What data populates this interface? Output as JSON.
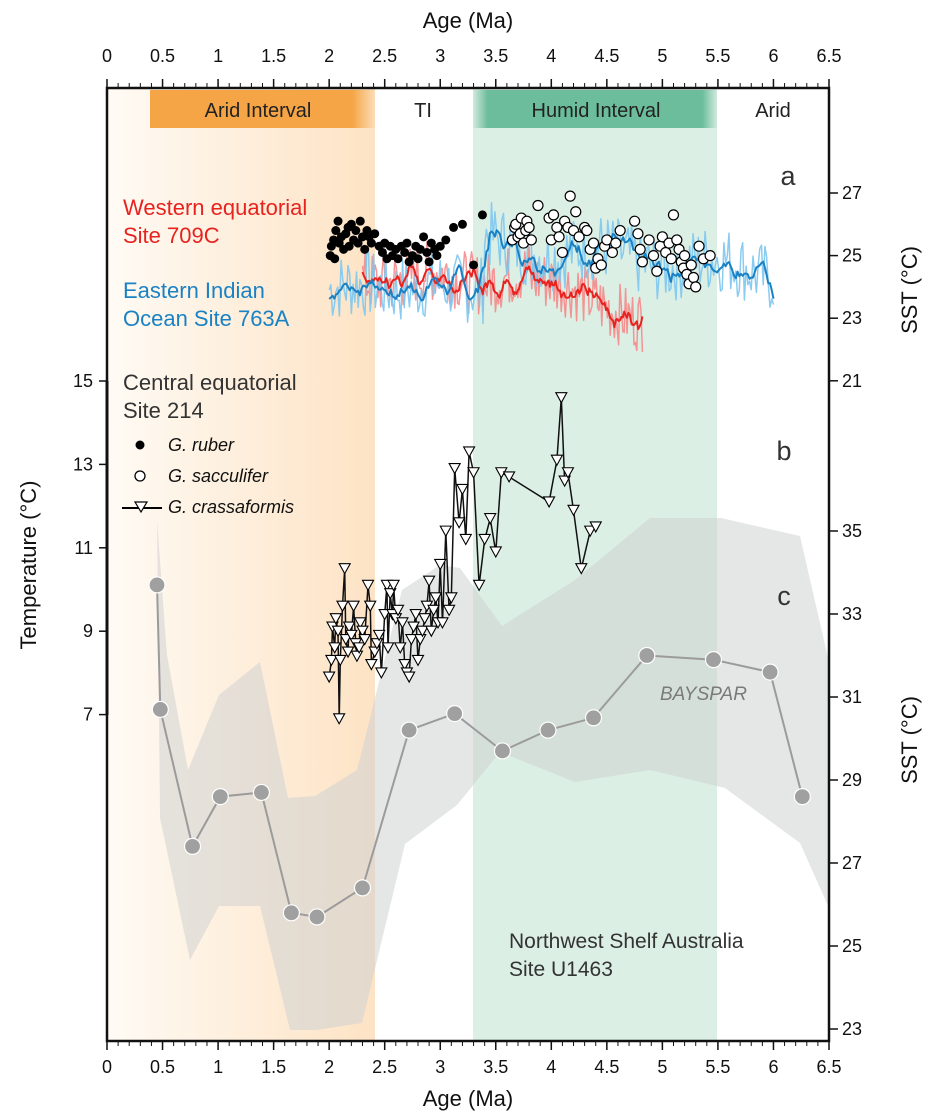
{
  "chart_data": {
    "type": "scatter",
    "xlabel_top": "Age (Ma)",
    "xlabel_bottom": "Age (Ma)",
    "xlim": [
      0,
      6.5
    ],
    "x_ticks": [
      "0",
      "0.5",
      "1",
      "1.5",
      "2",
      "2.5",
      "3",
      "3.5",
      "4",
      "4.5",
      "5",
      "5.5",
      "6",
      "6.5"
    ],
    "intervals": [
      {
        "label": "Arid Interval",
        "start": 0.4,
        "end": 2.4,
        "color": "#f5a545"
      },
      {
        "label": "TI",
        "start": 2.4,
        "end": 3.3,
        "color": "#ffffff"
      },
      {
        "label": "Humid Interval",
        "start": 3.3,
        "end": 5.5,
        "color": "#6cbd9c"
      },
      {
        "label": "Arid",
        "start": 5.5,
        "end": 6.5,
        "color": "#ffffff"
      }
    ],
    "panel_labels": [
      "a",
      "b",
      "c"
    ],
    "left_axis": {
      "label": "Temperature (°C)",
      "ticks": [
        7,
        9,
        11,
        13,
        15
      ]
    },
    "right_axis_top": {
      "label": "SST (°C)",
      "ticks": [
        21,
        23,
        25,
        27
      ]
    },
    "right_axis_bottom": {
      "label": "SST (°C)",
      "ticks": [
        23,
        25,
        27,
        29,
        31,
        33,
        35
      ]
    },
    "series_labels": {
      "site709": [
        "Western equatorial",
        "Site 709C"
      ],
      "site763": [
        "Eastern Indian",
        "Ocean Site 763A"
      ],
      "site214": [
        "Central equatorial",
        "Site 214"
      ],
      "u1463": [
        "Northwest Shelf Australia",
        "Site U1463"
      ],
      "bayspar": "BAYSPAR"
    },
    "legend": {
      "ruber": "G. ruber",
      "sacculifer": "G. sacculifer",
      "crassaformis": "G. crassaformis"
    },
    "series": [
      {
        "name": "G. ruber",
        "axis": "right_top",
        "marker": "filled-circle",
        "points": [
          [
            2.01,
            25.0
          ],
          [
            2.02,
            25.3
          ],
          [
            2.04,
            25.5
          ],
          [
            2.05,
            24.9
          ],
          [
            2.06,
            25.8
          ],
          [
            2.08,
            26.1
          ],
          [
            2.09,
            25.4
          ],
          [
            2.11,
            25.6
          ],
          [
            2.13,
            25.2
          ],
          [
            2.15,
            25.7
          ],
          [
            2.17,
            25.9
          ],
          [
            2.18,
            25.3
          ],
          [
            2.2,
            26.0
          ],
          [
            2.22,
            25.5
          ],
          [
            2.24,
            25.8
          ],
          [
            2.26,
            25.4
          ],
          [
            2.28,
            26.1
          ],
          [
            2.3,
            25.6
          ],
          [
            2.32,
            25.2
          ],
          [
            2.34,
            25.8
          ],
          [
            2.36,
            25.6
          ],
          [
            2.38,
            25.4
          ],
          [
            2.41,
            25.7
          ],
          [
            2.45,
            25.3
          ],
          [
            2.48,
            25.1
          ],
          [
            2.5,
            25.4
          ],
          [
            2.52,
            24.9
          ],
          [
            2.55,
            25.3
          ],
          [
            2.57,
            25.0
          ],
          [
            2.6,
            25.2
          ],
          [
            2.62,
            24.9
          ],
          [
            2.65,
            25.3
          ],
          [
            2.68,
            25.1
          ],
          [
            2.7,
            25.4
          ],
          [
            2.72,
            24.8
          ],
          [
            2.75,
            25.0
          ],
          [
            2.78,
            25.3
          ],
          [
            2.8,
            24.9
          ],
          [
            2.82,
            25.2
          ],
          [
            2.85,
            25.6
          ],
          [
            2.88,
            25.1
          ],
          [
            2.9,
            24.8
          ],
          [
            2.92,
            25.4
          ],
          [
            2.95,
            25.2
          ],
          [
            2.97,
            25.0
          ],
          [
            3.0,
            25.3
          ],
          [
            3.05,
            25.5
          ],
          [
            3.12,
            25.9
          ],
          [
            3.2,
            26.0
          ],
          [
            3.3,
            24.7
          ],
          [
            3.38,
            26.3
          ]
        ]
      },
      {
        "name": "G. sacculifer",
        "axis": "right_top",
        "marker": "open-circle",
        "points": [
          [
            3.65,
            25.5
          ],
          [
            3.67,
            25.9
          ],
          [
            3.68,
            26.0
          ],
          [
            3.7,
            25.6
          ],
          [
            3.72,
            25.7
          ],
          [
            3.73,
            26.2
          ],
          [
            3.75,
            25.4
          ],
          [
            3.77,
            25.8
          ],
          [
            3.78,
            26.1
          ],
          [
            3.8,
            25.9
          ],
          [
            3.82,
            25.5
          ],
          [
            3.88,
            26.6
          ],
          [
            3.98,
            26.2
          ],
          [
            4.0,
            25.5
          ],
          [
            4.02,
            26.3
          ],
          [
            4.05,
            25.9
          ],
          [
            4.07,
            25.6
          ],
          [
            4.1,
            25.1
          ],
          [
            4.12,
            26.1
          ],
          [
            4.15,
            25.9
          ],
          [
            4.17,
            26.9
          ],
          [
            4.2,
            25.8
          ],
          [
            4.22,
            26.4
          ],
          [
            4.25,
            25.6
          ],
          [
            4.3,
            25.9
          ],
          [
            4.32,
            25.8
          ],
          [
            4.35,
            25.2
          ],
          [
            4.38,
            25.4
          ],
          [
            4.4,
            24.6
          ],
          [
            4.42,
            24.9
          ],
          [
            4.45,
            24.7
          ],
          [
            4.48,
            25.3
          ],
          [
            4.5,
            25.5
          ],
          [
            4.55,
            25.1
          ],
          [
            4.58,
            25.4
          ],
          [
            4.62,
            25.8
          ],
          [
            4.75,
            26.1
          ],
          [
            4.78,
            25.7
          ],
          [
            4.8,
            25.2
          ],
          [
            4.82,
            24.8
          ],
          [
            4.88,
            25.5
          ],
          [
            4.92,
            25.0
          ],
          [
            4.95,
            24.5
          ],
          [
            4.98,
            25.3
          ],
          [
            5.0,
            25.6
          ],
          [
            5.03,
            25.1
          ],
          [
            5.06,
            25.4
          ],
          [
            5.08,
            24.9
          ],
          [
            5.1,
            26.3
          ],
          [
            5.13,
            25.5
          ],
          [
            5.15,
            25.2
          ],
          [
            5.17,
            24.8
          ],
          [
            5.19,
            24.6
          ],
          [
            5.2,
            25.0
          ],
          [
            5.22,
            24.4
          ],
          [
            5.24,
            24.1
          ],
          [
            5.26,
            24.7
          ],
          [
            5.28,
            24.3
          ],
          [
            5.3,
            24.0
          ],
          [
            5.33,
            25.3
          ],
          [
            5.37,
            24.9
          ],
          [
            5.43,
            25.0
          ]
        ]
      },
      {
        "name": "G. crassaformis",
        "axis": "left",
        "marker": "open-triangle",
        "points": [
          [
            2.0,
            7.9
          ],
          [
            2.02,
            8.3
          ],
          [
            2.03,
            9.1
          ],
          [
            2.05,
            8.6
          ],
          [
            2.06,
            9.3
          ],
          [
            2.08,
            9.0
          ],
          [
            2.09,
            6.9
          ],
          [
            2.1,
            8.3
          ],
          [
            2.12,
            9.6
          ],
          [
            2.14,
            10.5
          ],
          [
            2.15,
            8.8
          ],
          [
            2.17,
            8.5
          ],
          [
            2.18,
            9.1
          ],
          [
            2.2,
            8.9
          ],
          [
            2.22,
            9.6
          ],
          [
            2.24,
            8.7
          ],
          [
            2.25,
            8.4
          ],
          [
            2.27,
            8.6
          ],
          [
            2.28,
            9.2
          ],
          [
            2.3,
            9.0
          ],
          [
            2.32,
            8.8
          ],
          [
            2.35,
            10.1
          ],
          [
            2.37,
            9.6
          ],
          [
            2.38,
            8.2
          ],
          [
            2.41,
            8.5
          ],
          [
            2.43,
            8.7
          ],
          [
            2.45,
            8.9
          ],
          [
            2.47,
            8.0
          ],
          [
            2.5,
            9.4
          ],
          [
            2.52,
            10.1
          ],
          [
            2.53,
            8.6
          ],
          [
            2.55,
            9.9
          ],
          [
            2.57,
            9.4
          ],
          [
            2.58,
            10.1
          ],
          [
            2.6,
            9.3
          ],
          [
            2.62,
            9.5
          ],
          [
            2.64,
            8.6
          ],
          [
            2.66,
            9.2
          ],
          [
            2.68,
            8.2
          ],
          [
            2.7,
            8.0
          ],
          [
            2.72,
            7.9
          ],
          [
            2.74,
            8.8
          ],
          [
            2.76,
            9.1
          ],
          [
            2.78,
            9.4
          ],
          [
            2.8,
            8.3
          ],
          [
            2.82,
            8.8
          ],
          [
            2.84,
            9.0
          ],
          [
            2.86,
            9.3
          ],
          [
            2.88,
            9.6
          ],
          [
            2.9,
            10.2
          ],
          [
            2.92,
            9.0
          ],
          [
            2.94,
            9.5
          ],
          [
            2.96,
            9.8
          ],
          [
            2.98,
            9.2
          ],
          [
            3.0,
            10.6
          ],
          [
            3.02,
            9.2
          ],
          [
            3.05,
            11.4
          ],
          [
            3.08,
            9.5
          ],
          [
            3.1,
            9.8
          ],
          [
            3.13,
            12.9
          ],
          [
            3.17,
            11.6
          ],
          [
            3.2,
            12.4
          ],
          [
            3.23,
            11.2
          ],
          [
            3.26,
            13.3
          ],
          [
            3.3,
            12.8
          ],
          [
            3.35,
            10.1
          ],
          [
            3.4,
            11.2
          ],
          [
            3.45,
            11.7
          ],
          [
            3.5,
            10.9
          ],
          [
            3.55,
            12.8
          ],
          [
            3.62,
            12.7
          ],
          [
            3.98,
            12.1
          ],
          [
            4.05,
            13.1
          ],
          [
            4.09,
            14.6
          ],
          [
            4.12,
            12.6
          ],
          [
            4.15,
            12.8
          ],
          [
            4.2,
            11.9
          ],
          [
            4.27,
            10.5
          ],
          [
            4.35,
            11.4
          ],
          [
            4.4,
            11.5
          ]
        ]
      },
      {
        "name": "BAYSPAR",
        "axis": "right_bottom",
        "marker": "gray-circle-line",
        "points": [
          [
            0.45,
            33.7
          ],
          [
            0.48,
            30.7
          ],
          [
            0.77,
            27.4
          ],
          [
            1.02,
            28.6
          ],
          [
            1.39,
            28.7
          ],
          [
            1.66,
            25.8
          ],
          [
            1.89,
            25.7
          ],
          [
            2.3,
            26.4
          ],
          [
            2.72,
            30.2
          ],
          [
            3.13,
            30.6
          ],
          [
            3.56,
            29.7
          ],
          [
            3.97,
            30.2
          ],
          [
            4.38,
            30.5
          ],
          [
            4.86,
            32.0
          ],
          [
            5.46,
            31.9
          ],
          [
            5.97,
            31.6
          ],
          [
            6.26,
            28.6
          ]
        ]
      }
    ]
  }
}
